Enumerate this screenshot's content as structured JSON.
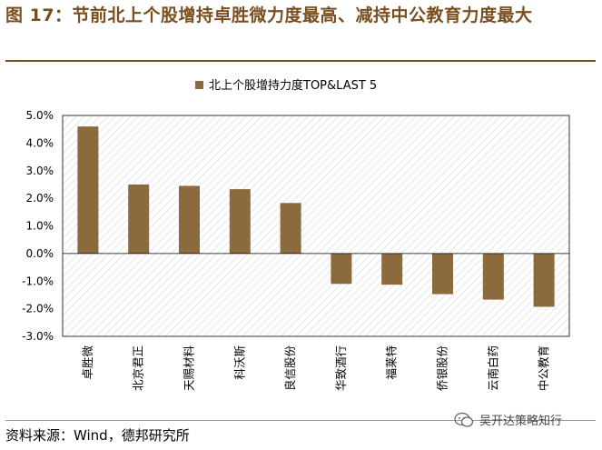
{
  "figure_title": "图 17：节前北上个股增持卓胜微力度最高、减持中公教育力度最大",
  "source": "资料来源：Wind，德邦研究所",
  "watermark": "吴开达策略知行",
  "colors": {
    "bar": "#8b6a3e",
    "title": "#7a4e1f",
    "hatch": "#cfcfcf"
  },
  "chart_data": {
    "type": "bar",
    "legend": "北上个股增持力度TOP&LAST 5",
    "legend_position": "top-center",
    "categories": [
      "卓胜微",
      "北京君正",
      "天赐材料",
      "科沃斯",
      "良信股份",
      "华致酒行",
      "福莱特",
      "侨银股份",
      "云南白药",
      "中公教育"
    ],
    "series": [
      {
        "name": "北上个股增持力度TOP&LAST 5",
        "values": [
          4.6,
          2.5,
          2.45,
          2.33,
          1.83,
          -1.1,
          -1.13,
          -1.47,
          -1.67,
          -1.93
        ]
      }
    ],
    "ylim": [
      -3.0,
      5.0
    ],
    "yticks": [
      5.0,
      4.0,
      3.0,
      2.0,
      1.0,
      0.0,
      -1.0,
      -2.0,
      -3.0
    ],
    "ytick_labels": [
      "5.0%",
      "4.0%",
      "3.0%",
      "2.0%",
      "1.0%",
      "0.0%",
      "-1.0%",
      "-2.0%",
      "-3.0%"
    ],
    "grid": false
  }
}
